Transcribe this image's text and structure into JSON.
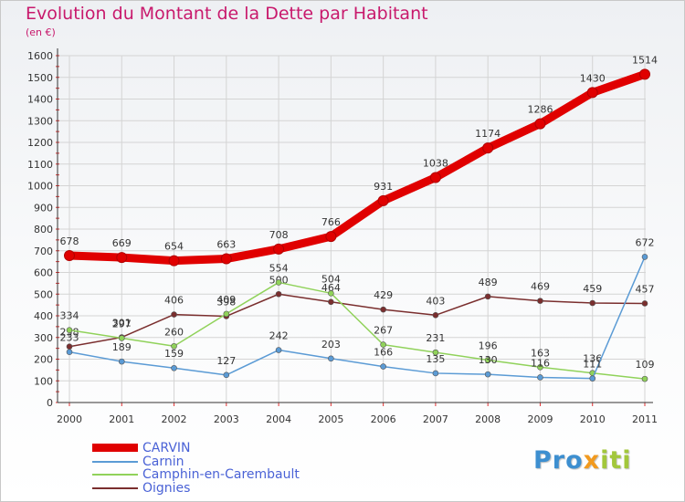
{
  "title": "Evolution du Montant de la Dette par Habitant",
  "subtitle": "(en €)",
  "logo": {
    "part1": "Pro",
    "part2": "x",
    "part3": "iti"
  },
  "chart_data": {
    "type": "line",
    "categories": [
      "2000",
      "2001",
      "2002",
      "2003",
      "2004",
      "2005",
      "2006",
      "2007",
      "2008",
      "2009",
      "2010",
      "2011"
    ],
    "ylim": [
      0,
      1600
    ],
    "yticks": [
      0,
      100,
      200,
      300,
      400,
      500,
      600,
      700,
      800,
      900,
      1000,
      1100,
      1200,
      1300,
      1400,
      1500,
      1600
    ],
    "grid": true,
    "legend_position": "bottom-left",
    "series": [
      {
        "name": "CARVIN",
        "color": "#e00000",
        "width": 9,
        "labelColor": "#333333",
        "values": [
          678,
          669,
          654,
          663,
          708,
          766,
          931,
          1038,
          1174,
          1286,
          1430,
          1514
        ]
      },
      {
        "name": "Carnin",
        "color": "#5b9bd5",
        "width": 1.5,
        "labelColor": "#333333",
        "values": [
          233,
          189,
          159,
          127,
          242,
          203,
          166,
          135,
          130,
          116,
          111,
          672
        ]
      },
      {
        "name": "Camphin-en-Carembault",
        "color": "#90d25a",
        "width": 1.5,
        "labelColor": "#333333",
        "values": [
          334,
          297,
          260,
          409,
          554,
          504,
          267,
          231,
          196,
          163,
          136,
          109
        ]
      },
      {
        "name": "Oignies",
        "color": "#7a2e2e",
        "width": 1.5,
        "labelColor": "#333333",
        "values": [
          258,
          301,
          406,
          398,
          500,
          464,
          429,
          403,
          489,
          469,
          459,
          457
        ]
      }
    ]
  }
}
